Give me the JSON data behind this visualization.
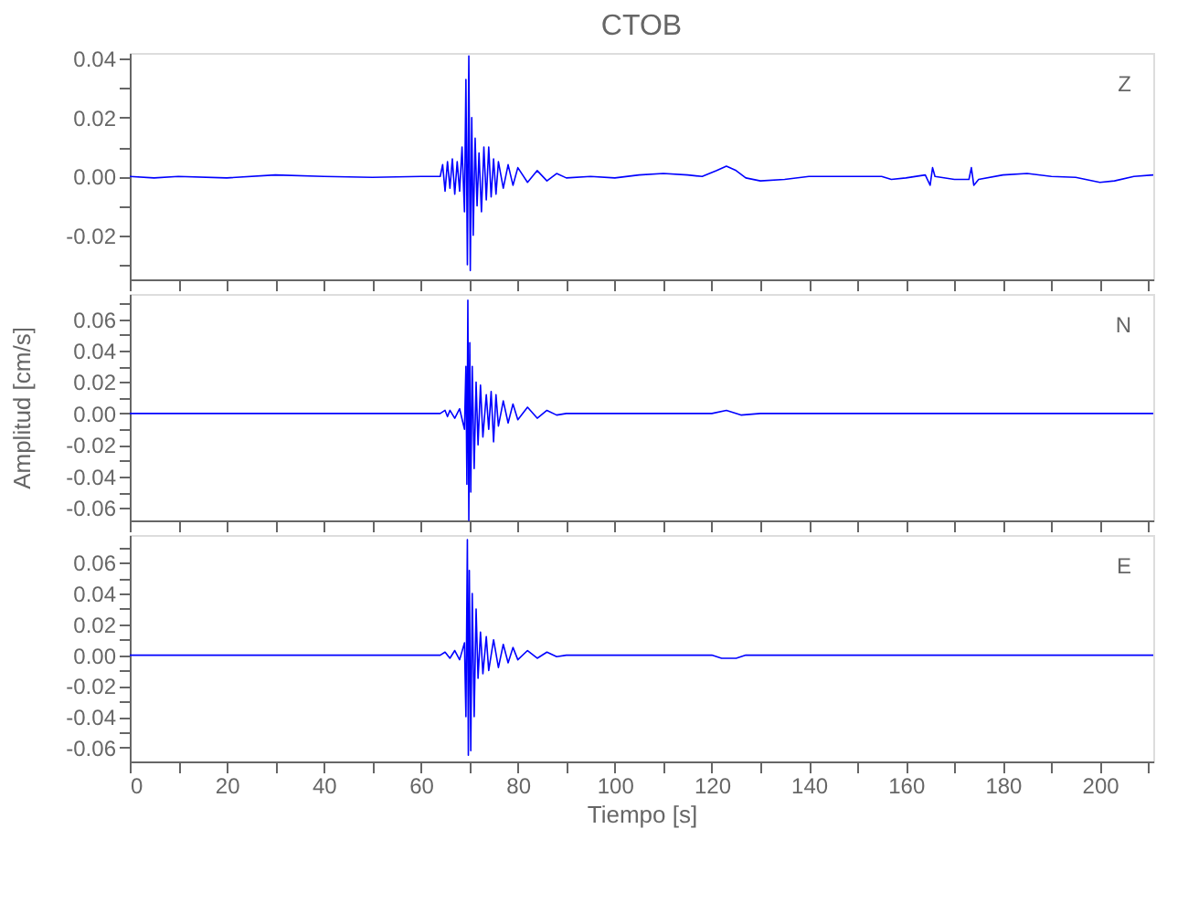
{
  "chart_data": [
    {
      "type": "line",
      "title": "CTOB",
      "annotations": [
        "Z"
      ],
      "xlim": [
        0,
        211
      ],
      "ylim": [
        -0.035,
        0.042
      ],
      "tick_labels": "y",
      "xticks": [
        {
          "value": 0,
          "label": null
        },
        {
          "value": 10,
          "label": null
        },
        {
          "value": 20,
          "label": null
        },
        {
          "value": 30,
          "label": null
        },
        {
          "value": 40,
          "label": null
        },
        {
          "value": 50,
          "label": null
        },
        {
          "value": 60,
          "label": null
        },
        {
          "value": 70,
          "label": null
        },
        {
          "value": 80,
          "label": null
        },
        {
          "value": 90,
          "label": null
        },
        {
          "value": 100,
          "label": null
        },
        {
          "value": 110,
          "label": null
        },
        {
          "value": 120,
          "label": null
        },
        {
          "value": 130,
          "label": null
        },
        {
          "value": 140,
          "label": null
        },
        {
          "value": 150,
          "label": null
        },
        {
          "value": 160,
          "label": null
        },
        {
          "value": 170,
          "label": null
        },
        {
          "value": 180,
          "label": null
        },
        {
          "value": 190,
          "label": null
        },
        {
          "value": 200,
          "label": null
        },
        {
          "value": 210,
          "label": null
        }
      ],
      "yticks": [
        {
          "value": -0.03,
          "label": null
        },
        {
          "value": -0.02,
          "label": "-0.02"
        },
        {
          "value": -0.01,
          "label": null
        },
        {
          "value": 0,
          "label": "0.00"
        },
        {
          "value": 0.01,
          "label": null
        },
        {
          "value": 0.02,
          "label": "0.02"
        },
        {
          "value": 0.03,
          "label": null
        },
        {
          "value": 0.04,
          "label": "0.04"
        }
      ],
      "series": [
        {
          "color": "#0000ff",
          "x": [
            0,
            5,
            10,
            20,
            30,
            40,
            50,
            60,
            64,
            64.5,
            65,
            65.5,
            66,
            66.5,
            67,
            67.5,
            68,
            68.5,
            69,
            69.3,
            69.6,
            69.9,
            70.2,
            70.5,
            70.8,
            71.2,
            71.6,
            72,
            72.5,
            73,
            73.5,
            74,
            74.5,
            75,
            75.5,
            76,
            77,
            78,
            79,
            80,
            82,
            84,
            86,
            88,
            90,
            95,
            100,
            105,
            110,
            115,
            118,
            121,
            123,
            125,
            127,
            130,
            135,
            140,
            145,
            150,
            155,
            157,
            160,
            164,
            165,
            165.5,
            166,
            170,
            173,
            173.5,
            174,
            175,
            180,
            185,
            190,
            195,
            200,
            203,
            207,
            211
          ],
          "values": [
            0,
            -0.0005,
            0,
            -0.0005,
            0.0005,
            0,
            -0.0003,
            0,
            0,
            0.004,
            -0.005,
            0.005,
            -0.004,
            0.006,
            -0.006,
            0.005,
            -0.005,
            0.01,
            -0.012,
            0.033,
            -0.03,
            0.041,
            -0.032,
            0.02,
            -0.02,
            0.013,
            -0.01,
            0.008,
            -0.012,
            0.01,
            -0.008,
            0.01,
            -0.007,
            0.006,
            -0.006,
            0.005,
            -0.004,
            0.004,
            -0.003,
            0.003,
            -0.002,
            0.002,
            -0.0015,
            0.001,
            -0.0005,
            0,
            -0.0005,
            0.0005,
            0.001,
            0.0005,
            0,
            0.002,
            0.0035,
            0.002,
            -0.0005,
            -0.0015,
            -0.001,
            0,
            0,
            0,
            0,
            -0.001,
            -0.0005,
            0.0005,
            -0.003,
            0.003,
            0,
            -0.001,
            -0.001,
            0.003,
            -0.003,
            -0.001,
            0.0005,
            0.001,
            0,
            -0.0003,
            -0.002,
            -0.0015,
            0,
            0.0005
          ]
        }
      ]
    },
    {
      "type": "line",
      "ylabel": "Amplitud [cm/s]",
      "annotations": [
        "N"
      ],
      "xlim": [
        0,
        211
      ],
      "ylim": [
        -0.068,
        0.076
      ],
      "tick_labels": "y",
      "xticks": [
        {
          "value": 0,
          "label": null
        },
        {
          "value": 10,
          "label": null
        },
        {
          "value": 20,
          "label": null
        },
        {
          "value": 30,
          "label": null
        },
        {
          "value": 40,
          "label": null
        },
        {
          "value": 50,
          "label": null
        },
        {
          "value": 60,
          "label": null
        },
        {
          "value": 70,
          "label": null
        },
        {
          "value": 80,
          "label": null
        },
        {
          "value": 90,
          "label": null
        },
        {
          "value": 100,
          "label": null
        },
        {
          "value": 110,
          "label": null
        },
        {
          "value": 120,
          "label": null
        },
        {
          "value": 130,
          "label": null
        },
        {
          "value": 140,
          "label": null
        },
        {
          "value": 150,
          "label": null
        },
        {
          "value": 160,
          "label": null
        },
        {
          "value": 170,
          "label": null
        },
        {
          "value": 180,
          "label": null
        },
        {
          "value": 190,
          "label": null
        },
        {
          "value": 200,
          "label": null
        },
        {
          "value": 210,
          "label": null
        }
      ],
      "yticks": [
        {
          "value": -0.06,
          "label": "-0.06"
        },
        {
          "value": -0.05,
          "label": null
        },
        {
          "value": -0.04,
          "label": "-0.04"
        },
        {
          "value": -0.03,
          "label": null
        },
        {
          "value": -0.02,
          "label": "-0.02"
        },
        {
          "value": -0.01,
          "label": null
        },
        {
          "value": 0,
          "label": "0.00"
        },
        {
          "value": 0.01,
          "label": null
        },
        {
          "value": 0.02,
          "label": "0.02"
        },
        {
          "value": 0.03,
          "label": null
        },
        {
          "value": 0.04,
          "label": "0.04"
        },
        {
          "value": 0.05,
          "label": null
        },
        {
          "value": 0.06,
          "label": "0.06"
        },
        {
          "value": 0.07,
          "label": null
        }
      ],
      "series": [
        {
          "color": "#0000ff",
          "x": [
            0,
            60,
            64,
            65,
            65.5,
            66,
            67,
            68,
            69,
            69.3,
            69.5,
            69.7,
            69.9,
            70.1,
            70.3,
            70.6,
            71,
            71.4,
            71.8,
            72.3,
            72.8,
            73.5,
            74,
            74.5,
            75,
            75.5,
            76,
            77,
            78,
            79,
            80,
            82,
            84,
            86,
            88,
            90,
            95,
            120,
            123,
            126,
            130,
            211
          ],
          "values": [
            0,
            0,
            0,
            0.002,
            -0.002,
            0.002,
            -0.003,
            0.003,
            -0.01,
            0.03,
            -0.045,
            0.072,
            -0.068,
            0.045,
            -0.05,
            0.03,
            -0.035,
            0.02,
            -0.02,
            0.018,
            -0.015,
            0.012,
            -0.01,
            0.014,
            -0.018,
            0.012,
            -0.008,
            0.008,
            -0.006,
            0.006,
            -0.004,
            0.004,
            -0.003,
            0.002,
            -0.001,
            0,
            0,
            0,
            0.002,
            -0.001,
            0,
            0
          ]
        }
      ]
    },
    {
      "type": "line",
      "xlabel": "Tiempo [s]",
      "annotations": [
        "E"
      ],
      "xlim": [
        0,
        211
      ],
      "ylim": [
        -0.069,
        0.078
      ],
      "xticks": [
        {
          "value": 0,
          "label": "0"
        },
        {
          "value": 10,
          "label": null
        },
        {
          "value": 20,
          "label": "20"
        },
        {
          "value": 30,
          "label": null
        },
        {
          "value": 40,
          "label": "40"
        },
        {
          "value": 50,
          "label": null
        },
        {
          "value": 60,
          "label": "60"
        },
        {
          "value": 70,
          "label": null
        },
        {
          "value": 80,
          "label": "80"
        },
        {
          "value": 90,
          "label": null
        },
        {
          "value": 100,
          "label": "100"
        },
        {
          "value": 110,
          "label": null
        },
        {
          "value": 120,
          "label": "120"
        },
        {
          "value": 130,
          "label": null
        },
        {
          "value": 140,
          "label": "140"
        },
        {
          "value": 150,
          "label": null
        },
        {
          "value": 160,
          "label": "160"
        },
        {
          "value": 170,
          "label": null
        },
        {
          "value": 180,
          "label": "180"
        },
        {
          "value": 190,
          "label": null
        },
        {
          "value": 200,
          "label": "200"
        },
        {
          "value": 210,
          "label": null
        }
      ],
      "yticks": [
        {
          "value": -0.06,
          "label": "-0.06"
        },
        {
          "value": -0.05,
          "label": null
        },
        {
          "value": -0.04,
          "label": "-0.04"
        },
        {
          "value": -0.03,
          "label": null
        },
        {
          "value": -0.02,
          "label": "-0.02"
        },
        {
          "value": -0.01,
          "label": null
        },
        {
          "value": 0,
          "label": "0.00"
        },
        {
          "value": 0.01,
          "label": null
        },
        {
          "value": 0.02,
          "label": "0.02"
        },
        {
          "value": 0.03,
          "label": null
        },
        {
          "value": 0.04,
          "label": "0.04"
        },
        {
          "value": 0.05,
          "label": null
        },
        {
          "value": 0.06,
          "label": "0.06"
        },
        {
          "value": 0.07,
          "label": null
        }
      ],
      "series": [
        {
          "color": "#0000ff",
          "x": [
            0,
            60,
            64,
            65,
            66,
            67,
            68,
            69,
            69.3,
            69.6,
            69.8,
            70,
            70.3,
            70.6,
            71,
            71.4,
            71.8,
            72.3,
            72.8,
            73.5,
            74,
            75,
            76,
            77,
            78,
            79,
            80,
            82,
            84,
            86,
            88,
            90,
            95,
            120,
            122,
            125,
            127,
            211
          ],
          "values": [
            0,
            0,
            0,
            0.002,
            -0.002,
            0.003,
            -0.003,
            0.008,
            -0.04,
            0.075,
            -0.065,
            0.055,
            -0.062,
            0.04,
            -0.04,
            0.03,
            -0.015,
            0.015,
            -0.012,
            0.012,
            -0.01,
            0.01,
            -0.008,
            0.007,
            -0.005,
            0.005,
            -0.003,
            0.003,
            -0.002,
            0.002,
            -0.001,
            0,
            0,
            0,
            -0.002,
            -0.002,
            0,
            0
          ]
        }
      ]
    }
  ]
}
